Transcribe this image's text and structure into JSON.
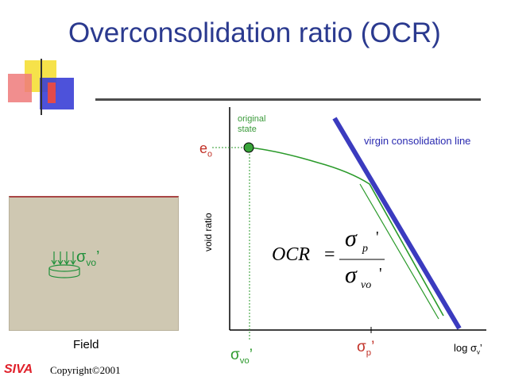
{
  "title": "Overconsolidation ratio (OCR)",
  "field_label": "Field",
  "footer": {
    "brand": "SIVA",
    "copyright": "Copyright©2001"
  },
  "graph": {
    "original_state_line1": "original",
    "original_state_line2": "state",
    "virgin_line_label": "virgin consolidation line",
    "eo_main": "e",
    "eo_sub": "o",
    "y_axis_label": "void ratio",
    "x_axis_label_prefix": "log σ",
    "x_axis_label_sub": "v",
    "x_axis_label_suffix": "’",
    "sigma_vo_main": "σ",
    "sigma_vo_sub": "vo",
    "sigma_vo_prime": "’",
    "sigma_p_main": "σ",
    "sigma_p_sub": "p",
    "sigma_p_prime": "’"
  },
  "field": {
    "sigma_main": "σ",
    "sigma_sub": "vo",
    "sigma_prime": "’"
  },
  "formula": {
    "lhs": "OCR",
    "eq": "=",
    "num_sigma": "σ",
    "num_sub": "p",
    "num_prime": "'",
    "den_sigma": "σ",
    "den_sub": "vo",
    "den_prime": "'"
  },
  "colors": {
    "title": "#2b3a8f",
    "virgin_line": "#3b3bbf",
    "curve": "#2a9a2a",
    "red_label": "#c23228",
    "siva": "#e0202a"
  }
}
